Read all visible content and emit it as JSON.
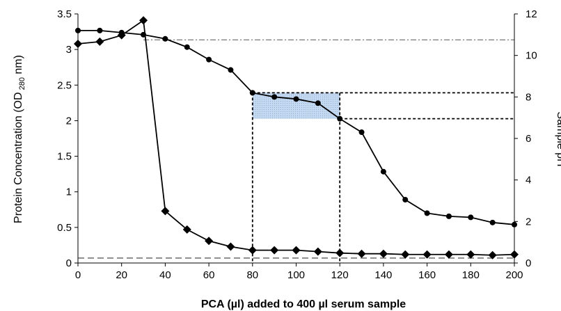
{
  "chart_data": {
    "type": "line",
    "title": "",
    "xlabel": "PCA (µl) added to 400 µl serum sample",
    "ylabel_left": {
      "main": "Protein Concentration (OD",
      "sub": " 280",
      "end": " nm)"
    },
    "ylabel_right": "Sample pH",
    "xlim": [
      0,
      200
    ],
    "ylim_left": [
      0,
      3.5
    ],
    "ylim_right": [
      0,
      12
    ],
    "x_ticks": [
      "0",
      "20",
      "40",
      "60",
      "80",
      "100",
      "120",
      "140",
      "160",
      "180",
      "200"
    ],
    "y_left_ticks": [
      "0",
      "0.5",
      "1",
      "1.5",
      "2",
      "2.5",
      "3",
      "3.5"
    ],
    "y_right_ticks": [
      "0",
      "2",
      "4",
      "6",
      "8",
      "10",
      "12"
    ],
    "grid": false,
    "legend": "none",
    "series": [
      {
        "axis": "left",
        "marker": "diamond",
        "color": "#000000",
        "x": [
          0,
          10,
          20,
          30,
          40,
          50,
          60,
          70,
          80,
          90,
          100,
          110,
          120,
          130,
          140,
          150,
          160,
          170,
          180,
          190,
          200
        ],
        "values": [
          3.08,
          3.11,
          3.2,
          3.41,
          0.73,
          0.47,
          0.31,
          0.23,
          0.18,
          0.18,
          0.18,
          0.16,
          0.14,
          0.13,
          0.13,
          0.12,
          0.12,
          0.12,
          0.12,
          0.11,
          0.12
        ]
      },
      {
        "axis": "right",
        "marker": "circle",
        "color": "#000000",
        "x": [
          0,
          10,
          20,
          30,
          40,
          50,
          60,
          70,
          80,
          90,
          100,
          110,
          120,
          130,
          140,
          150,
          160,
          170,
          180,
          190,
          200
        ],
        "values": [
          11.2,
          11.2,
          11.1,
          11.0,
          10.8,
          10.4,
          9.8,
          9.3,
          8.2,
          8.0,
          7.9,
          7.7,
          6.95,
          6.3,
          4.4,
          3.05,
          2.4,
          2.25,
          2.2,
          1.95,
          1.85
        ]
      }
    ],
    "annotations": {
      "ph_reference_line": {
        "axis": "right",
        "y": 10.75,
        "style": "dash-dot",
        "x_from": 30,
        "x_to": 200
      },
      "od_reference_line": {
        "axis": "left",
        "y": 0.07,
        "style": "dashed",
        "color": "#808080"
      },
      "highlight_region": {
        "x": [
          80,
          120
        ],
        "y_right": [
          6.95,
          8.2
        ],
        "fill": "#c5d9f1",
        "pattern": "dotted"
      },
      "vertical_guides": [
        80,
        120
      ],
      "ph_guides": [
        8.2,
        6.95
      ]
    }
  }
}
